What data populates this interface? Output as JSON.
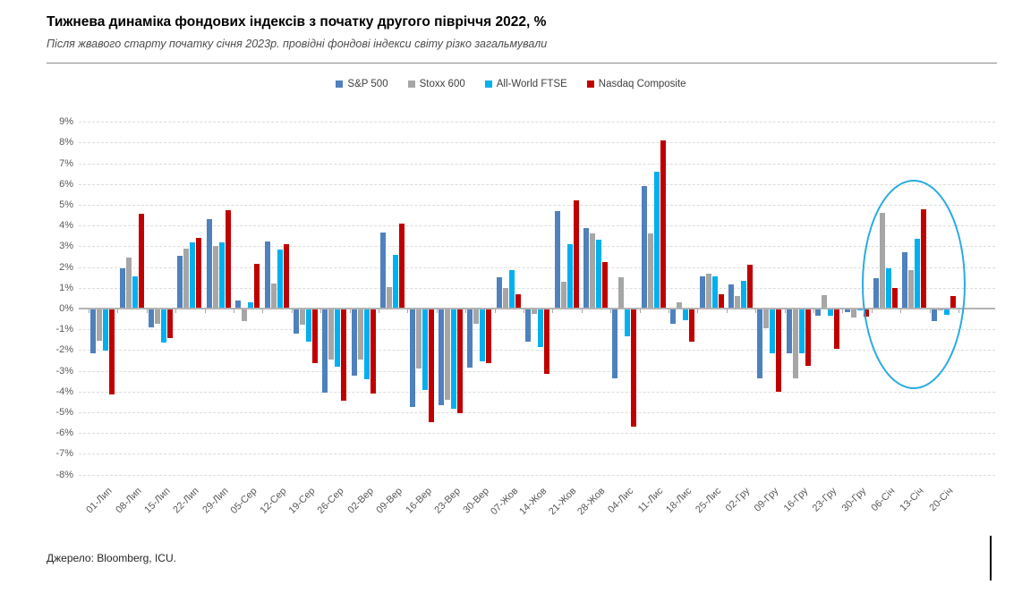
{
  "header": {
    "title": "Тижнева динаміка фондових індексів з початку другого півріччя 2022, %",
    "subtitle": "Після жвавого старту початку січня 2023р. провідні фондові індекси світу різко загальмували"
  },
  "footer": {
    "source": "Джерело: Bloomberg, ICU."
  },
  "chart_data": {
    "type": "bar",
    "title": "Тижнева динаміка фондових індексів з початку другого півріччя 2022, %",
    "categories": [
      "01-Лип",
      "08-Лип",
      "15-Лип",
      "22-Лип",
      "29-Лип",
      "05-Сер",
      "12-Сер",
      "19-Сер",
      "26-Сер",
      "02-Вер",
      "09-Вер",
      "16-Вер",
      "23-Вер",
      "30-Вер",
      "07-Жов",
      "14-Жов",
      "21-Жов",
      "28-Жов",
      "04-Лис",
      "11-Лис",
      "18-Лис",
      "25-Лис",
      "02-Гру",
      "09-Гру",
      "16-Гру",
      "23-Гру",
      "30-Гру",
      "06-Січ",
      "13-Січ",
      "20-Січ"
    ],
    "series": [
      {
        "name": "S&P 500",
        "color": "#4F81BD",
        "values": [
          -2.1,
          1.95,
          -0.85,
          2.55,
          4.3,
          0.4,
          3.25,
          -1.15,
          -4.0,
          -3.2,
          3.65,
          -4.7,
          -4.6,
          -2.8,
          1.5,
          -1.55,
          4.7,
          3.9,
          -3.3,
          5.9,
          -0.7,
          1.55,
          1.15,
          -3.3,
          -2.1,
          -0.3,
          -0.15,
          1.45,
          2.7,
          -0.55
        ]
      },
      {
        "name": "Stoxx 600",
        "color": "#A6A6A6",
        "values": [
          -1.5,
          2.45,
          -0.7,
          2.9,
          3.0,
          -0.55,
          1.2,
          -0.75,
          -2.4,
          -2.4,
          1.05,
          -2.85,
          -4.35,
          -0.7,
          1.0,
          -0.2,
          1.3,
          3.6,
          1.5,
          3.6,
          0.3,
          1.7,
          0.6,
          -0.9,
          -3.3,
          0.65,
          -0.4,
          4.6,
          1.85,
          -0.05
        ]
      },
      {
        "name": "All-World FTSE",
        "color": "#00B0F0",
        "values": [
          -2.0,
          1.55,
          -1.6,
          3.2,
          3.2,
          0.3,
          2.85,
          -1.55,
          -2.75,
          -3.35,
          2.6,
          -3.9,
          -4.8,
          -2.5,
          1.85,
          -1.8,
          3.1,
          3.3,
          -1.3,
          6.6,
          -0.5,
          1.55,
          1.35,
          -2.1,
          -2.1,
          -0.3,
          -0.05,
          1.95,
          3.35,
          -0.25
        ]
      },
      {
        "name": "Nasdaq Composite",
        "color": "#C00000",
        "values": [
          -4.1,
          4.55,
          -1.4,
          3.4,
          4.75,
          2.15,
          3.1,
          -2.6,
          -4.4,
          -4.05,
          4.1,
          -5.45,
          -5.0,
          -2.6,
          0.7,
          -3.1,
          5.2,
          2.25,
          -5.65,
          8.1,
          -1.55,
          0.7,
          2.1,
          -3.95,
          -2.7,
          -1.9,
          -0.35,
          1.0,
          4.8,
          0.6
        ]
      }
    ],
    "xlabel": "",
    "ylabel": "%",
    "ylim": [
      -8,
      9
    ],
    "ytick_step": 1,
    "ytick_suffix": "%",
    "grid": true,
    "legend_position": "top",
    "annotation": {
      "shape": "ellipse",
      "color": "#29ABE2",
      "highlighted_categories": [
        "06-Січ",
        "13-Січ",
        "20-Січ"
      ]
    }
  }
}
